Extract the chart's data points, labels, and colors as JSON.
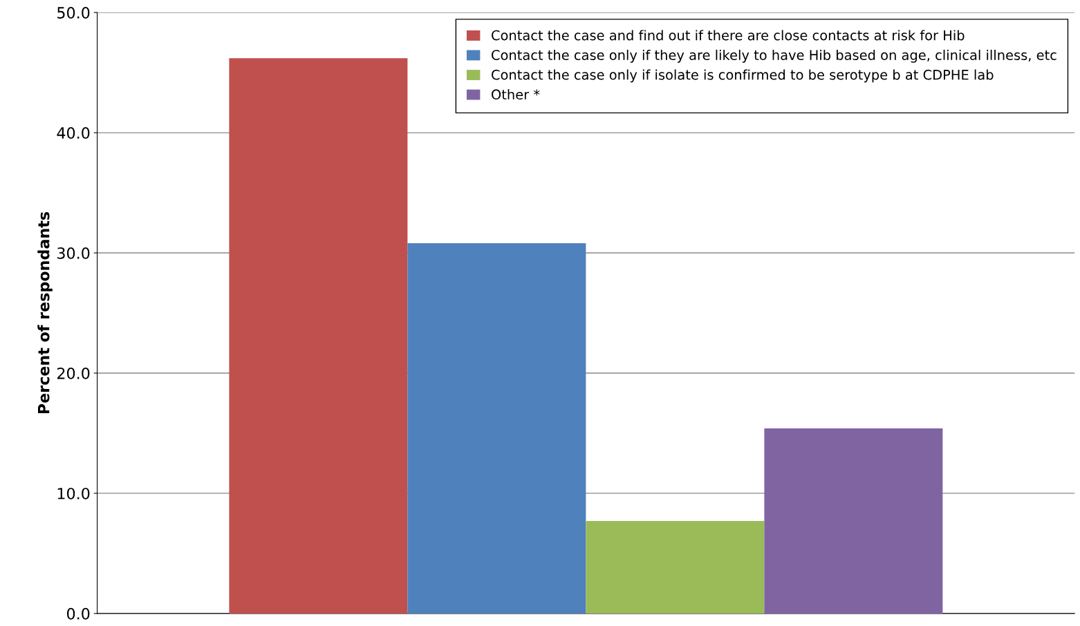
{
  "chart_data": {
    "type": "bar",
    "ylabel": "Percent of respondants",
    "categories": [
      null
    ],
    "series": [
      {
        "name": "Contact the case and find out if there are close contacts at risk for Hib",
        "color": "#c0504d",
        "values": [
          46.2
        ]
      },
      {
        "name": "Contact the case only if they are likely to have Hib based on age, clinical illness, etc",
        "color": "#4f81bd",
        "values": [
          30.8
        ]
      },
      {
        "name": "Contact the case only if isolate is confirmed to be serotype b at CDPHE lab",
        "color": "#9bbb59",
        "values": [
          7.7
        ]
      },
      {
        "name": "Other *",
        "color": "#8064a2",
        "values": [
          15.4
        ]
      }
    ],
    "ylim": [
      0,
      50
    ],
    "yticks": [
      {
        "value": 0,
        "label": "0.0"
      },
      {
        "value": 10,
        "label": "10.0"
      },
      {
        "value": 20,
        "label": "20.0"
      },
      {
        "value": 30,
        "label": "30.0"
      },
      {
        "value": 40,
        "label": "40.0"
      },
      {
        "value": 50,
        "label": "50.0"
      }
    ],
    "grid": "y",
    "legend": "top right"
  }
}
